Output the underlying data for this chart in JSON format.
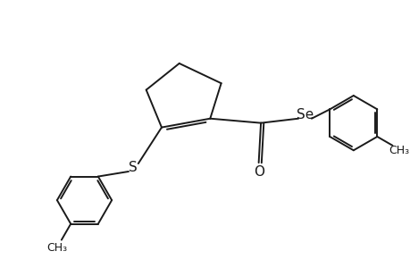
{
  "background_color": "#ffffff",
  "line_color": "#1a1a1a",
  "line_width": 1.4,
  "font_size": 10,
  "figsize": [
    4.6,
    3.0
  ],
  "dpi": 100,
  "xlim": [
    0,
    9.2
  ],
  "ylim": [
    0,
    6.0
  ]
}
